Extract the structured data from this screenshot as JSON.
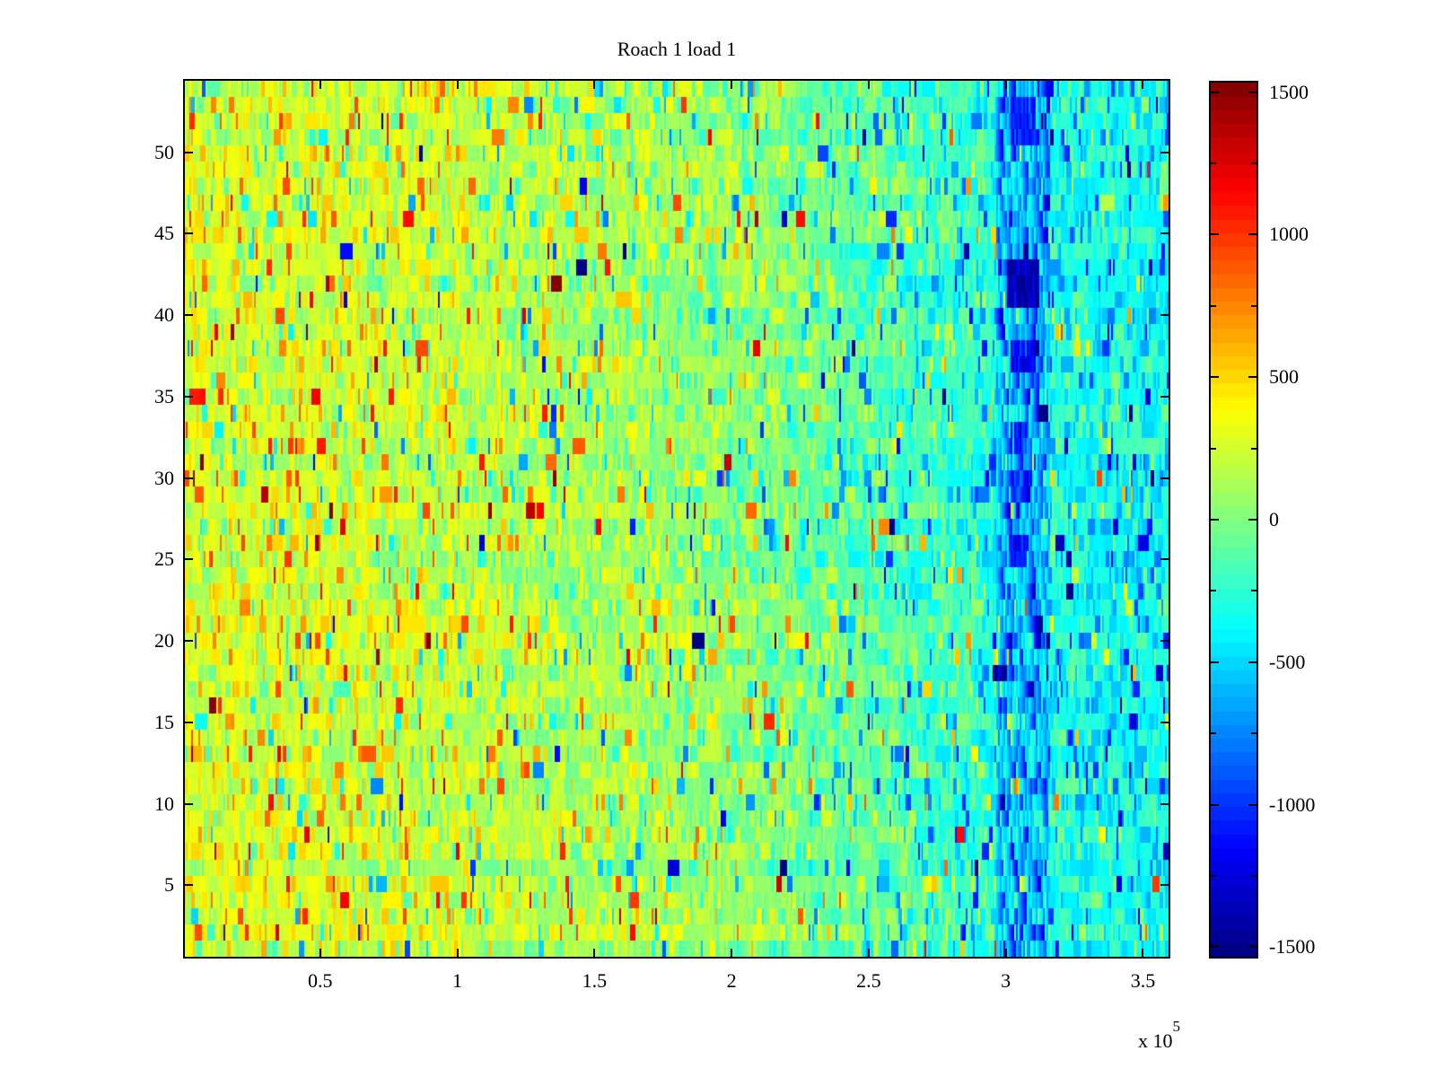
{
  "figure": {
    "background": "#ffffff",
    "text_color": "#000000"
  },
  "chart_data": {
    "type": "heatmap",
    "title": "Roach 1 load 1",
    "grid": false,
    "x_axis": {
      "range": [
        0,
        3.6
      ],
      "ticks": [
        0.5,
        1,
        1.5,
        2,
        2.5,
        3,
        3.5
      ],
      "tick_labels": [
        "0.5",
        "1",
        "1.5",
        "2",
        "2.5",
        "3",
        "3.5"
      ],
      "multiplier_label": "x 10",
      "multiplier_exp": "5"
    },
    "y_axis": {
      "range": [
        0.5,
        54.5
      ],
      "ticks": [
        5,
        10,
        15,
        20,
        25,
        30,
        35,
        40,
        45,
        50
      ],
      "tick_labels": [
        "5",
        "10",
        "15",
        "20",
        "25",
        "30",
        "35",
        "40",
        "45",
        "50"
      ]
    },
    "colorbar": {
      "position": "right",
      "colormap": "jet",
      "levels": 64,
      "caxis": [
        -1540,
        1540
      ],
      "major_tick_values": [
        1500,
        1000,
        500,
        0,
        -500,
        -1000,
        -1500
      ],
      "major_tick_labels": [
        "1500",
        "1000",
        "500",
        "0",
        "-500",
        "-1000",
        "-1500"
      ],
      "minor_tick_step": 250,
      "anchor_colors": [
        "#000080",
        "#0000ff",
        "#00ffff",
        "#80ff80",
        "#ffff00",
        "#ff0000",
        "#800000"
      ]
    },
    "heatmap": {
      "rows": 54,
      "cols": 550,
      "value_trend_anchors": [
        [
          0.0,
          280
        ],
        [
          0.1,
          260
        ],
        [
          0.2,
          240
        ],
        [
          0.3,
          200
        ],
        [
          0.4,
          150
        ],
        [
          0.5,
          90
        ],
        [
          0.6,
          10
        ],
        [
          0.7,
          -110
        ],
        [
          0.78,
          -210
        ],
        [
          0.85,
          -300
        ],
        [
          0.92,
          -340
        ],
        [
          1.0,
          -360
        ]
      ],
      "row_offset_std": 35,
      "noise_std": 160,
      "repeat_prob": 0.45,
      "spike_prob": 0.12,
      "spike_min": 250,
      "spike_max": 850,
      "spike_negative_bias": [
        0.35,
        0.4
      ],
      "extreme_prob": 0.012,
      "extreme_min": 900,
      "extreme_max": 1400,
      "anomaly_band": {
        "x0": 0.825,
        "x1": 0.878,
        "bias": -150,
        "spike_prob": 0.18,
        "spike_value": -650
      },
      "anomaly_blobs": [
        {
          "x0": 0.835,
          "x1": 0.868,
          "row0": 11,
          "row1": 13,
          "value": -1400
        },
        {
          "x0": 0.84,
          "x1": 0.865,
          "row0": 1,
          "row1": 3,
          "value": -1050
        },
        {
          "x0": 0.84,
          "x1": 0.862,
          "row0": 16,
          "row1": 17,
          "value": -1150
        },
        {
          "x0": 0.842,
          "x1": 0.858,
          "row0": 21,
          "row1": 22,
          "value": -1000
        },
        {
          "x0": 0.84,
          "x1": 0.855,
          "row0": 24,
          "row1": 25,
          "value": -950
        },
        {
          "x0": 0.838,
          "x1": 0.856,
          "row0": 28,
          "row1": 29,
          "value": -1100
        }
      ],
      "seed": 1337
    }
  }
}
